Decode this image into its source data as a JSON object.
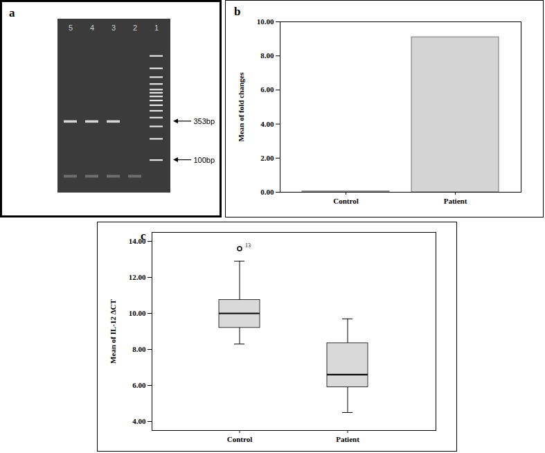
{
  "chart_data": [
    {
      "type": "gel",
      "title": "a",
      "categories": [
        "5",
        "4",
        "3",
        "2",
        "1"
      ],
      "bands": [
        [
          353,
          59
        ],
        [
          353,
          59
        ],
        [
          353,
          59
        ],
        [
          59
        ],
        [
          100,
          200,
          300,
          400,
          500,
          600,
          700,
          800,
          900,
          1000,
          1200,
          1500,
          2000,
          3000
        ]
      ],
      "annotations": [
        {
          "value": 353,
          "label": "353bp"
        },
        {
          "value": 100,
          "label": "100bp"
        }
      ],
      "ylim": [
        35,
        10000
      ],
      "log": "y",
      "tick_labels": false
    },
    {
      "type": "bar",
      "title": "b",
      "categories": [
        "Control",
        "Patient"
      ],
      "values": [
        0.05,
        9.1
      ],
      "color": "#d4d4d4",
      "ylabel": "Mean of fold changes",
      "ylim": [
        0,
        10
      ],
      "yticks": [
        {
          "value": 0,
          "label": "0.00"
        },
        {
          "value": 2,
          "label": "2.00"
        },
        {
          "value": 4,
          "label": "4.00"
        },
        {
          "value": 6,
          "label": "6.00"
        },
        {
          "value": 8,
          "label": "8.00"
        },
        {
          "value": 10,
          "label": "10.00"
        }
      ]
    },
    {
      "type": "box",
      "title": "c",
      "categories": [
        "Control",
        "Patient"
      ],
      "boxes": [
        {
          "whisker_low": 8.3,
          "q1": 9.2,
          "median": 10.0,
          "q3": 10.75,
          "whisker_high": 12.9,
          "outliers": [
            {
              "value": 13.6,
              "label": "13"
            }
          ]
        },
        {
          "whisker_low": 4.5,
          "q1": 5.9,
          "median": 6.6,
          "q3": 8.35,
          "whisker_high": 9.7,
          "outliers": []
        }
      ],
      "color": "#d9d9d9",
      "ylabel": "Mean of IL-12 ΔCT",
      "ylim": [
        3.5,
        14.5
      ],
      "yticks": [
        {
          "value": 4,
          "label": "4.00"
        },
        {
          "value": 6,
          "label": "6.00"
        },
        {
          "value": 8,
          "label": "8.00"
        },
        {
          "value": 10,
          "label": "10.00"
        },
        {
          "value": 12,
          "label": "12.00"
        },
        {
          "value": 14,
          "label": "14.00"
        }
      ]
    }
  ]
}
